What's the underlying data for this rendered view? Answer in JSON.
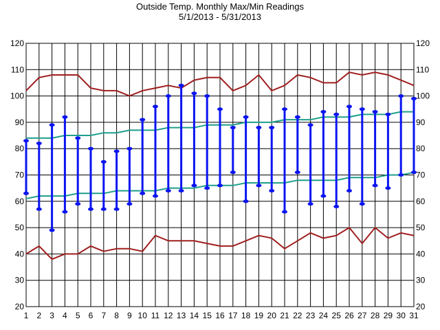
{
  "chart_data": {
    "type": "line",
    "title": "Outside Temp. Monthly Max/Min Readings",
    "subtitle": "5/1/2013 - 5/31/2013",
    "xlabel": "",
    "ylabel": "",
    "x": [
      1,
      2,
      3,
      4,
      5,
      6,
      7,
      8,
      9,
      10,
      11,
      12,
      13,
      14,
      15,
      16,
      17,
      18,
      19,
      20,
      21,
      22,
      23,
      24,
      25,
      26,
      27,
      28,
      29,
      30,
      31
    ],
    "ylim": [
      20,
      120
    ],
    "yticks": [
      20,
      30,
      40,
      50,
      60,
      70,
      80,
      90,
      100,
      110,
      120
    ],
    "grid": true,
    "record_high": [
      102,
      107,
      108,
      108,
      108,
      103,
      102,
      102,
      100,
      102,
      103,
      104,
      103,
      106,
      107,
      107,
      102,
      104,
      108,
      102,
      104,
      108,
      107,
      105,
      105,
      109,
      108,
      109,
      108,
      106,
      104
    ],
    "record_low": [
      40,
      43,
      38,
      40,
      40,
      43,
      41,
      42,
      42,
      41,
      47,
      45,
      45,
      45,
      44,
      43,
      43,
      45,
      47,
      46,
      42,
      45,
      48,
      46,
      47,
      50,
      44,
      50,
      46,
      48,
      47
    ],
    "normal_high": [
      84,
      84,
      84,
      85,
      85,
      85,
      86,
      86,
      87,
      87,
      87,
      88,
      88,
      88,
      89,
      89,
      89,
      90,
      90,
      90,
      91,
      91,
      91,
      92,
      92,
      92,
      93,
      93,
      93,
      94,
      94
    ],
    "normal_low": [
      61,
      62,
      62,
      62,
      63,
      63,
      63,
      64,
      64,
      64,
      64,
      65,
      65,
      65,
      66,
      66,
      66,
      67,
      67,
      67,
      67,
      68,
      68,
      68,
      68,
      69,
      69,
      69,
      70,
      70,
      71
    ],
    "daily_max": [
      83,
      82,
      89,
      92,
      84,
      80,
      75,
      79,
      80,
      91,
      96,
      100,
      104,
      101,
      100,
      95,
      88,
      92,
      88,
      88,
      95,
      92,
      89,
      94,
      93,
      96,
      95,
      94,
      93,
      100,
      99
    ],
    "daily_min": [
      63,
      57,
      49,
      56,
      59,
      57,
      57,
      57,
      59,
      63,
      62,
      64,
      64,
      66,
      65,
      66,
      71,
      60,
      66,
      64,
      56,
      71,
      59,
      62,
      58,
      64,
      59,
      66,
      65,
      70,
      71
    ],
    "colors": {
      "record": "#a01e1e",
      "normal": "#1e9e8c",
      "daily": "#0a14f0",
      "grid": "#000000"
    }
  }
}
